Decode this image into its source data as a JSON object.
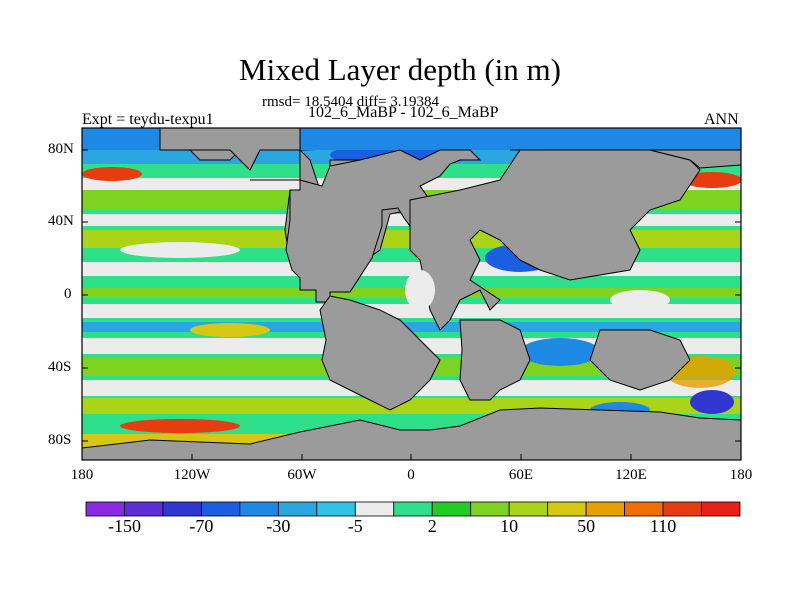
{
  "title": "Mixed Layer depth (in m)",
  "stats_line": "rmsd= 18.5404 diff= 3.19384",
  "comparison": "102_6_MaBP - 102_6_MaBP",
  "experiment": "Expt = teydu-texpu1",
  "season": "ANN",
  "lat_ticks": [
    "80N",
    "40N",
    "0",
    "40S",
    "80S"
  ],
  "lon_ticks": [
    "180",
    "120W",
    "60W",
    "0",
    "60E",
    "120E",
    "180"
  ],
  "colorbar": {
    "colors": [
      "#8a2be2",
      "#5a2fd6",
      "#2f37d0",
      "#1a5fe0",
      "#1e88e5",
      "#2aa6e0",
      "#31c3e6",
      "#ececec",
      "#2fe08a",
      "#22cc22",
      "#7ed321",
      "#a9d418",
      "#d6c812",
      "#e6a000",
      "#ef7000",
      "#e63c10",
      "#e8201a"
    ],
    "labels": [
      "-150",
      "-70",
      "-30",
      "-5",
      "2",
      "10",
      "50",
      "110"
    ]
  }
}
